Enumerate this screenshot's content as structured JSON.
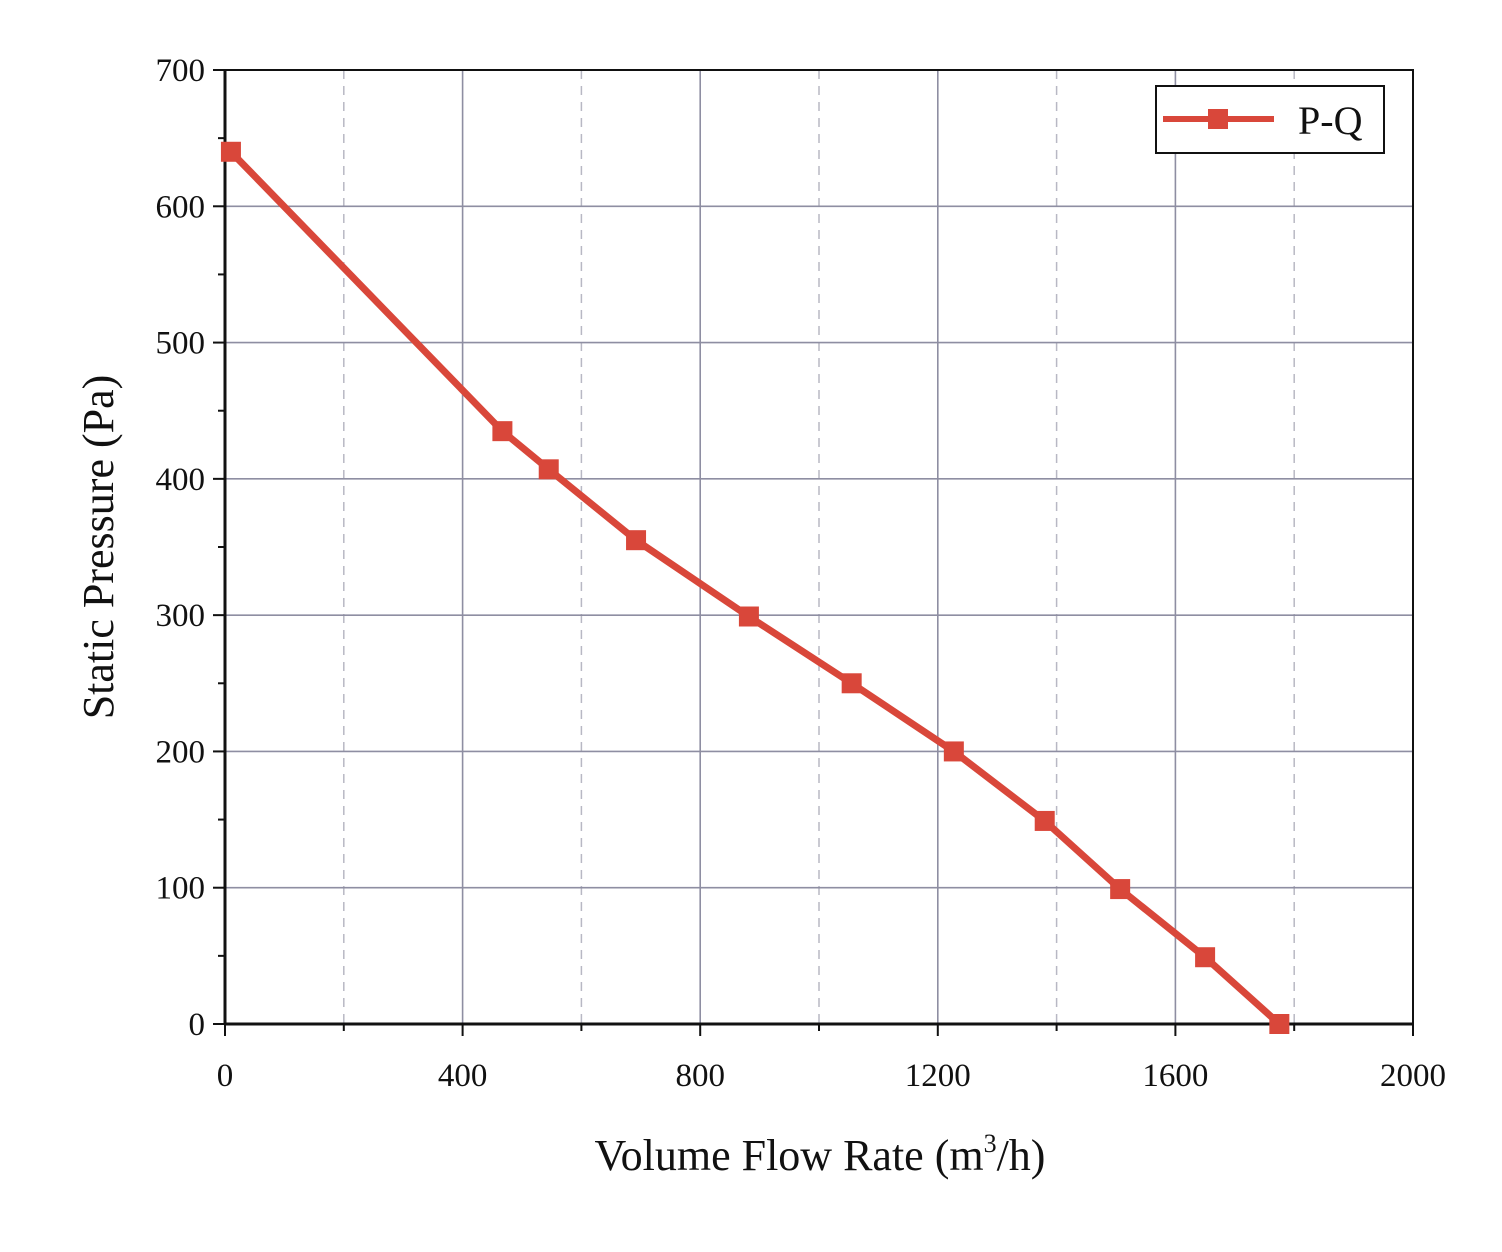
{
  "chart_data": {
    "type": "line",
    "title": "",
    "xlabel": "Volume Flow Rate (m³/h)",
    "xlabel_parts": {
      "prefix": "Volume Flow Rate (m",
      "superscript": "3",
      "suffix": "/h)"
    },
    "ylabel": "Static Pressure (Pa)",
    "xlim": [
      0,
      2000
    ],
    "ylim": [
      0,
      700
    ],
    "x_major_ticks": [
      0,
      400,
      800,
      1200,
      1600,
      2000
    ],
    "x_minor_ticks": [
      200,
      600,
      1000,
      1400,
      1800
    ],
    "y_major_ticks": [
      0,
      100,
      200,
      300,
      400,
      500,
      600,
      700
    ],
    "y_minor_ticks": [
      50,
      150,
      250,
      350,
      450,
      550,
      650
    ],
    "x_tick_labels": [
      "0",
      "400",
      "800",
      "1200",
      "1600",
      "2000"
    ],
    "y_tick_labels": [
      "0",
      "100",
      "200",
      "300",
      "400",
      "500",
      "600",
      "700"
    ],
    "grid": {
      "major": "solid",
      "minor_x": "dashed"
    },
    "legend": {
      "position": "top-right",
      "entries": [
        "P-Q"
      ]
    },
    "series": [
      {
        "name": "P-Q",
        "color": "#d9473a",
        "marker": "square",
        "x": [
          10,
          467,
          545,
          692,
          882,
          1055,
          1227,
          1380,
          1507,
          1650,
          1775
        ],
        "y": [
          640,
          435,
          407,
          355,
          299,
          250,
          200,
          149,
          99,
          49,
          0
        ]
      }
    ]
  }
}
